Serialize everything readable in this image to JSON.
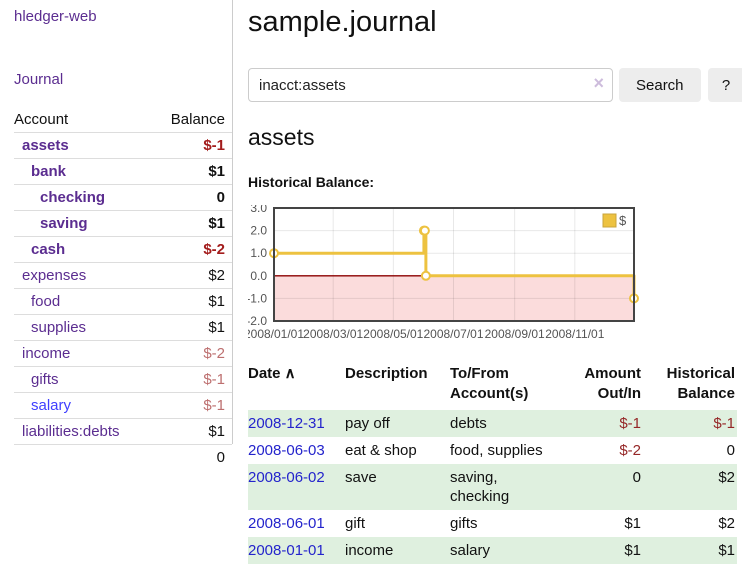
{
  "app": {
    "title": "hledger-web"
  },
  "sidebar": {
    "journal_label": "Journal",
    "headers": {
      "account": "Account",
      "balance": "Balance"
    },
    "accounts": [
      {
        "name": "assets",
        "balance": "$-1",
        "indent": 0,
        "bold": true,
        "balance_color": "negative-strong",
        "name_color": "purple"
      },
      {
        "name": "bank",
        "balance": "$1",
        "indent": 1,
        "bold": true,
        "balance_color": "normal",
        "name_color": "purple"
      },
      {
        "name": "checking",
        "balance": "0",
        "indent": 2,
        "bold": true,
        "balance_color": "normal",
        "name_color": "purple"
      },
      {
        "name": "saving",
        "balance": "$1",
        "indent": 2,
        "bold": true,
        "balance_color": "normal",
        "name_color": "purple"
      },
      {
        "name": "cash",
        "balance": "$-2",
        "indent": 1,
        "bold": true,
        "balance_color": "negative-strong",
        "name_color": "purple"
      },
      {
        "name": "expenses",
        "balance": "$2",
        "indent": 0,
        "bold": false,
        "balance_color": "normal",
        "name_color": "purple"
      },
      {
        "name": "food",
        "balance": "$1",
        "indent": 1,
        "bold": false,
        "balance_color": "normal",
        "name_color": "purple"
      },
      {
        "name": "supplies",
        "balance": "$1",
        "indent": 1,
        "bold": false,
        "balance_color": "normal",
        "name_color": "purple"
      },
      {
        "name": "income",
        "balance": "$-2",
        "indent": 0,
        "bold": false,
        "balance_color": "negative-soft",
        "name_color": "purple"
      },
      {
        "name": "gifts",
        "balance": "$-1",
        "indent": 1,
        "bold": false,
        "balance_color": "negative-soft",
        "name_color": "purple"
      },
      {
        "name": "salary",
        "balance": "$-1",
        "indent": 1,
        "bold": false,
        "balance_color": "negative-soft",
        "name_color": "blue"
      },
      {
        "name": "liabilities:debts",
        "balance": "$1",
        "indent": 0,
        "bold": false,
        "balance_color": "normal",
        "name_color": "purple"
      }
    ],
    "total": "0"
  },
  "main": {
    "title": "sample.journal",
    "search": {
      "value": "inacct:assets",
      "clear_icon": "×",
      "button_label": "Search",
      "help_label": "?"
    },
    "account_heading": "assets",
    "chart_label": "Historical Balance:"
  },
  "chart_data": {
    "type": "line",
    "step": true,
    "title": "Historical Balance:",
    "legend": [
      "$"
    ],
    "legend_position": "top-right",
    "x_dates": [
      "2008-01-01",
      "2008-06-01",
      "2008-06-02",
      "2008-06-03",
      "2008-12-31"
    ],
    "x_days": [
      0,
      152,
      153,
      154,
      365
    ],
    "y": [
      1,
      2,
      2,
      0,
      -1
    ],
    "xlim_days": [
      0,
      365
    ],
    "ylim": [
      -2,
      3
    ],
    "yticks": [
      3,
      2,
      1,
      0,
      -1,
      -2
    ],
    "ytick_labels": [
      "3.0",
      "2.0",
      "1.0",
      "0.0",
      "-1.0",
      "-2.0"
    ],
    "xticks_days": [
      0,
      60,
      121,
      182,
      244,
      305
    ],
    "xtick_labels": [
      "2008/01/01",
      "2008/03/01",
      "2008/05/01",
      "2008/07/01",
      "2008/09/01",
      "2008/11/01"
    ],
    "grid": true,
    "line_color": "#edc240",
    "marker_fill": "#ffffff",
    "negative_region_fill": "#fbdcdc",
    "zero_line_color": "#8b0000",
    "axis_text_color": "#545454",
    "plot_border_color": "#444444"
  },
  "register": {
    "sort_icon": "∧",
    "columns": [
      {
        "label": "Date",
        "align": "left",
        "sortable": true
      },
      {
        "label": "Description",
        "align": "left",
        "sortable": false
      },
      {
        "label": "To/From\nAccount(s)",
        "align": "left",
        "sortable": false
      },
      {
        "label": "Amount\nOut/In",
        "align": "right",
        "sortable": false
      },
      {
        "label": "Historical\nBalance",
        "align": "right",
        "sortable": false
      }
    ],
    "rows": [
      {
        "date": "2008-12-31",
        "description": "pay off",
        "accounts": "debts",
        "amount": "$-1",
        "amount_negative": true,
        "balance": "$-1",
        "balance_negative": true
      },
      {
        "date": "2008-06-03",
        "description": "eat & shop",
        "accounts": "food, supplies",
        "amount": "$-2",
        "amount_negative": true,
        "balance": "0",
        "balance_negative": false
      },
      {
        "date": "2008-06-02",
        "description": "save",
        "accounts": "saving,\nchecking",
        "amount": "0",
        "amount_negative": false,
        "balance": "$2",
        "balance_negative": false
      },
      {
        "date": "2008-06-01",
        "description": "gift",
        "accounts": "gifts",
        "amount": "$1",
        "amount_negative": false,
        "balance": "$2",
        "balance_negative": false
      },
      {
        "date": "2008-01-01",
        "description": "income",
        "accounts": "salary",
        "amount": "$1",
        "amount_negative": false,
        "balance": "$1",
        "balance_negative": false
      }
    ]
  },
  "colors": {
    "link_purple": "#5b2d90",
    "link_blue": "#3f3fff",
    "date_link_blue": "#2424cc",
    "negative_strong": "#a31c1c",
    "negative_soft": "#bd6f6f",
    "register_negative": "#952727",
    "row_green": "#dff0df",
    "chart_gold": "#edc240"
  }
}
